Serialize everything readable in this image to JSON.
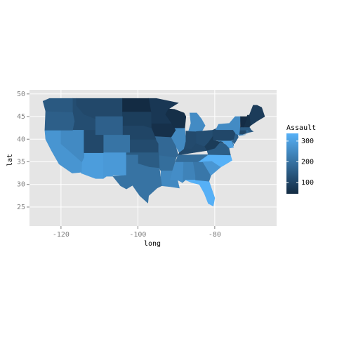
{
  "chart_data": {
    "type": "choropleth",
    "x_label": "long",
    "y_label": "lat",
    "xlim": [
      -128.2,
      -63.9
    ],
    "ylim": [
      20.8,
      50.9
    ],
    "xticks": [
      -120,
      -100,
      -80
    ],
    "yticks": [
      25,
      30,
      35,
      40,
      45,
      50
    ],
    "grid": true,
    "legend_title": "Assault",
    "legend_position": "right",
    "fill_lim": [
      45,
      337
    ],
    "fill_colors": [
      "#132B43",
      "#56B1F7"
    ],
    "legend_ticks": [
      100,
      200,
      300
    ],
    "values": [
      236,
      294,
      190,
      276,
      204,
      110,
      238,
      335,
      211,
      120,
      249,
      113,
      56,
      115,
      109,
      249,
      83,
      300,
      149,
      255,
      72,
      259,
      178,
      109,
      102,
      252,
      57,
      159,
      285,
      254,
      337,
      45,
      120,
      151,
      159,
      106,
      174,
      279,
      86,
      188,
      201,
      109,
      48,
      156,
      145,
      81,
      53,
      161
    ]
  }
}
